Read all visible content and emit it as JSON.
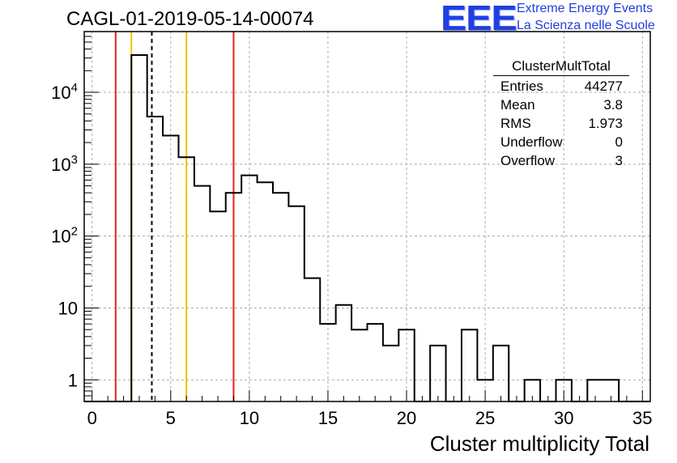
{
  "title": "CAGL-01-2019-05-14-00074",
  "logo": {
    "letters": "EEE",
    "line1": "Extreme Energy Events",
    "line2": "La Scienza nelle Scuole"
  },
  "stats": {
    "title": "ClusterMultTotal",
    "rows": [
      {
        "label": "Entries",
        "value": "44277"
      },
      {
        "label": "Mean",
        "value": "3.8"
      },
      {
        "label": "RMS",
        "value": "1.973"
      },
      {
        "label": "Underflow",
        "value": "0"
      },
      {
        "label": "Overflow",
        "value": "3"
      }
    ]
  },
  "chart_data": {
    "type": "bar",
    "xlabel": "Cluster multiplicity Total",
    "ylabel": "",
    "xlim": [
      -0.5,
      35.5
    ],
    "ylim": [
      0.5,
      70000
    ],
    "log_y": true,
    "grid": true,
    "bin_width": 1,
    "bin_low_edges": [
      -0.5,
      0.5,
      1.5,
      2.5,
      3.5,
      4.5,
      5.5,
      6.5,
      7.5,
      8.5,
      9.5,
      10.5,
      11.5,
      12.5,
      13.5,
      14.5,
      15.5,
      16.5,
      17.5,
      18.5,
      19.5,
      20.5,
      21.5,
      22.5,
      23.5,
      24.5,
      25.5,
      26.5,
      27.5,
      28.5,
      29.5,
      30.5,
      31.5,
      32.5,
      33.5,
      34.5
    ],
    "counts": [
      0,
      0,
      0,
      33000,
      4600,
      2500,
      1250,
      500,
      220,
      400,
      700,
      560,
      400,
      260,
      26,
      6,
      11,
      5,
      6,
      3,
      5,
      0,
      3,
      0,
      5,
      1,
      3,
      0,
      1,
      0,
      1,
      0,
      1,
      1,
      0,
      0
    ],
    "x_ticks": [
      0,
      5,
      10,
      15,
      20,
      25,
      30,
      35
    ],
    "y_ticks": [
      {
        "value": 1,
        "label": "1"
      },
      {
        "value": 10,
        "label": "10"
      },
      {
        "value": 100,
        "label": "10",
        "exp": "2"
      },
      {
        "value": 1000,
        "label": "10",
        "exp": "3"
      },
      {
        "value": 10000,
        "label": "10",
        "exp": "4"
      }
    ],
    "vertical_lines": [
      {
        "x": 1.5,
        "color": "#e8201c",
        "style": "solid"
      },
      {
        "x": 2.5,
        "color": "#f2c200",
        "style": "solid"
      },
      {
        "x": 3.8,
        "color": "#000000",
        "style": "dashed"
      },
      {
        "x": 6.0,
        "color": "#f2c200",
        "style": "solid"
      },
      {
        "x": 9.0,
        "color": "#e8201c",
        "style": "solid"
      }
    ]
  }
}
